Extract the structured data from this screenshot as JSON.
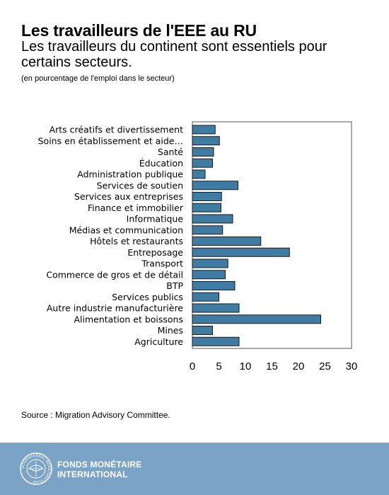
{
  "title": "Les travailleurs de l'EEE au RU",
  "subtitle": "Les travailleurs du continent sont essentiels pour certains secteurs.",
  "unit_note": "(en pourcentage de l'emploi dans le secteur)",
  "source": "Source : Migration Advisory Committee.",
  "footer": {
    "org_line1": "FONDS MONÉTAIRE",
    "org_line2": "INTERNATIONAL",
    "seal_text": "INTERNATIONAL MONETARY FUND"
  },
  "colors": {
    "bar_fill": "#3e7ca4",
    "bar_stroke": "#1a1a1a",
    "footer_bg": "#7ba3c5"
  },
  "chart_data": {
    "type": "bar",
    "orientation": "horizontal",
    "categories": [
      "Arts créatifs et divertissement",
      "Soins en établissement et aide…",
      "Santé",
      "Éducation",
      "Administration publique",
      "Services de soutien",
      "Services aux entreprises",
      "Finance et immobilier",
      "Informatique",
      "Médias et communication",
      "Hôtels et restaurants",
      "Entreposage",
      "Transport",
      "Commerce de gros et de détail",
      "BTP",
      "Services publics",
      "Autre industrie manufacturière",
      "Alimentation et boissons",
      "Mines",
      "Agriculture"
    ],
    "values": [
      4.3,
      5.1,
      4.0,
      3.8,
      2.4,
      8.6,
      5.5,
      5.4,
      7.6,
      5.7,
      12.9,
      18.3,
      6.7,
      6.2,
      8.0,
      5.0,
      8.8,
      24.2,
      3.8,
      8.8
    ],
    "xlim": [
      0,
      30
    ],
    "xticks": [
      0,
      5,
      10,
      15,
      20,
      25,
      30
    ],
    "xtick_labels": [
      "0",
      "5",
      "10",
      "15",
      "20",
      "25",
      "30"
    ],
    "grid": false,
    "legend": "none"
  }
}
